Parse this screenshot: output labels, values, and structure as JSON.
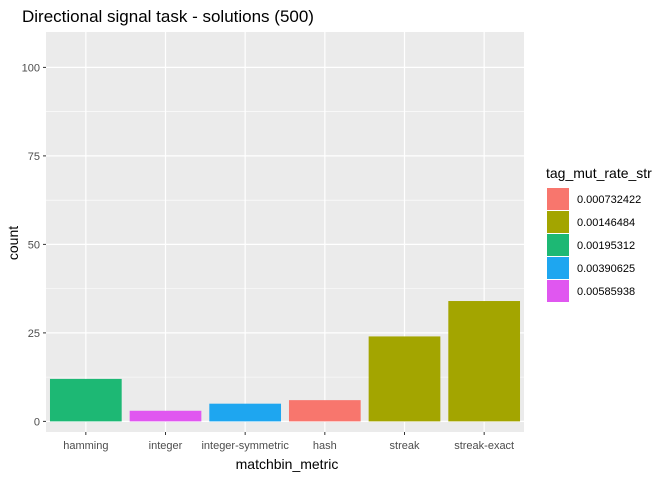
{
  "chart_data": {
    "type": "bar",
    "title": "Directional signal task - solutions (500)",
    "xlabel": "matchbin_metric",
    "ylabel": "count",
    "categories": [
      "hamming",
      "integer",
      "integer-symmetric",
      "hash",
      "streak",
      "streak-exact"
    ],
    "values": [
      12,
      3,
      5,
      6,
      24,
      34
    ],
    "bar_fill_group": [
      "0.00195312",
      "0.00585938",
      "0.00390625",
      "0.000732422",
      "0.00146484",
      "0.00146484"
    ],
    "yticks": [
      0,
      25,
      50,
      75,
      100
    ],
    "ylim": [
      -3,
      110
    ],
    "grid": true,
    "legend": {
      "title": "tag_mut_rate_str",
      "position": "right",
      "entries": [
        {
          "label": "0.000732422",
          "color": "#F8766D"
        },
        {
          "label": "0.00146484",
          "color": "#A3A500"
        },
        {
          "label": "0.00195312",
          "color": "#1DB874"
        },
        {
          "label": "0.00390625",
          "color": "#1EA6F0"
        },
        {
          "label": "0.00585938",
          "color": "#E057F0"
        }
      ]
    },
    "panel_background": "#EBEBEB",
    "gridline_color": "#FFFFFF"
  }
}
